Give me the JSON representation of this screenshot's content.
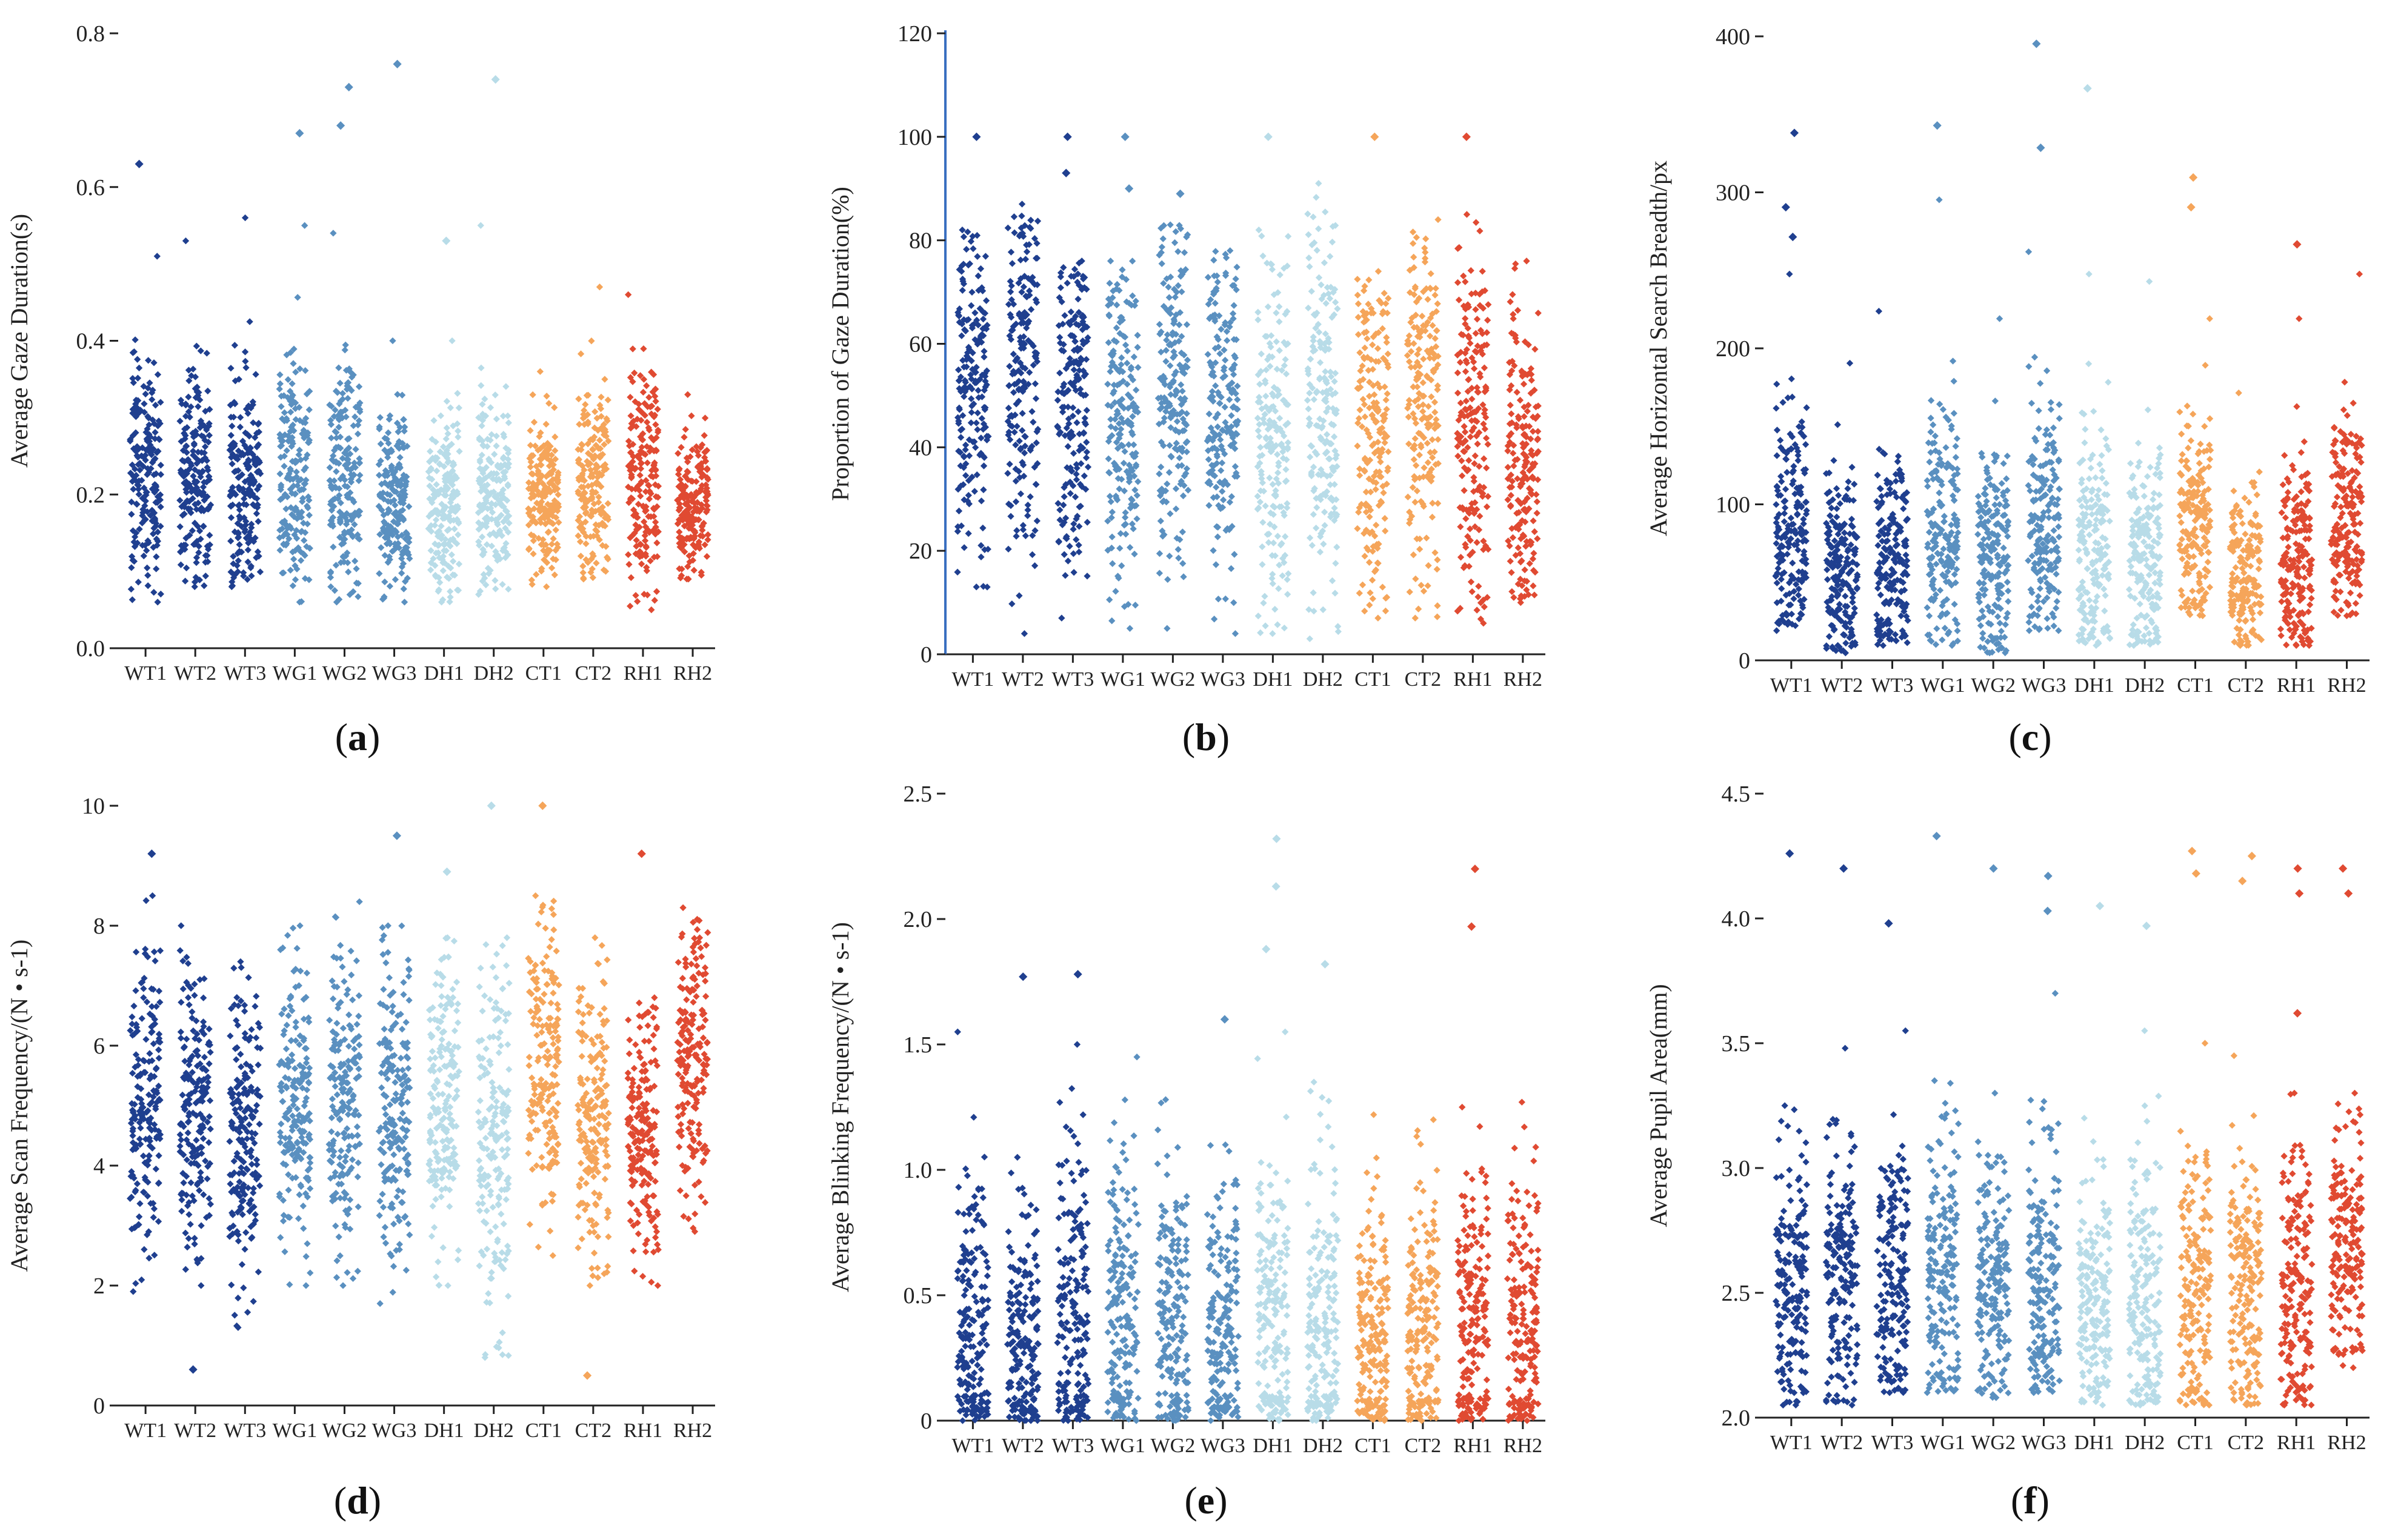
{
  "categories": [
    "WT1",
    "WT2",
    "WT3",
    "WG1",
    "WG2",
    "WG3",
    "DH1",
    "DH2",
    "CT1",
    "CT2",
    "RH1",
    "RH2"
  ],
  "colors": {
    "WT1": "#1f3f8f",
    "WT2": "#1f3f8f",
    "WT3": "#1f3f8f",
    "WG1": "#5a90c0",
    "WG2": "#5a90c0",
    "WG3": "#5a90c0",
    "DH1": "#b8dce8",
    "DH2": "#b8dce8",
    "CT1": "#f5a55a",
    "CT2": "#f5a55a",
    "RH1": "#e04a32",
    "RH2": "#e04a32"
  },
  "chart_data": [
    {
      "type": "scatter",
      "label": "a",
      "ylabel": "Average Gaze Duration(s)",
      "ylim": [
        0,
        0.8
      ],
      "yticks": [
        "0.0",
        "0.2",
        "0.4",
        "0.6",
        "0.8"
      ],
      "yaxis_line": false,
      "categories": [
        "WT1",
        "WT2",
        "WT3",
        "WG1",
        "WG2",
        "WG3",
        "DH1",
        "DH2",
        "CT1",
        "CT2",
        "RH1",
        "RH2"
      ],
      "summary": [
        {
          "min": 0.06,
          "max": 0.51,
          "center": 0.23,
          "spread": 0.075,
          "outliers": [
            0.63
          ]
        },
        {
          "min": 0.08,
          "max": 0.53,
          "center": 0.22,
          "spread": 0.065,
          "outliers": []
        },
        {
          "min": 0.08,
          "max": 0.56,
          "center": 0.21,
          "spread": 0.07,
          "outliers": []
        },
        {
          "min": 0.06,
          "max": 0.55,
          "center": 0.23,
          "spread": 0.08,
          "outliers": [
            0.67
          ]
        },
        {
          "min": 0.06,
          "max": 0.54,
          "center": 0.22,
          "spread": 0.075,
          "outliers": [
            0.68,
            0.73
          ]
        },
        {
          "min": 0.06,
          "max": 0.4,
          "center": 0.2,
          "spread": 0.06,
          "outliers": [
            0.76
          ]
        },
        {
          "min": 0.06,
          "max": 0.4,
          "center": 0.18,
          "spread": 0.06,
          "outliers": [
            0.53
          ]
        },
        {
          "min": 0.07,
          "max": 0.55,
          "center": 0.2,
          "spread": 0.065,
          "outliers": [
            0.74
          ]
        },
        {
          "min": 0.08,
          "max": 0.36,
          "center": 0.19,
          "spread": 0.05,
          "outliers": []
        },
        {
          "min": 0.09,
          "max": 0.47,
          "center": 0.21,
          "spread": 0.06,
          "outliers": []
        },
        {
          "min": 0.05,
          "max": 0.46,
          "center": 0.21,
          "spread": 0.075,
          "outliers": []
        },
        {
          "min": 0.09,
          "max": 0.33,
          "center": 0.18,
          "spread": 0.045,
          "outliers": []
        }
      ]
    },
    {
      "type": "scatter",
      "label": "b",
      "ylabel": "Proportion of Gaze Duration(%)",
      "ylim": [
        0,
        120
      ],
      "yticks": [
        "0",
        "20",
        "40",
        "60",
        "80",
        "100",
        "120"
      ],
      "yaxis_line": true,
      "categories": [
        "WT1",
        "WT2",
        "WT3",
        "WG1",
        "WG2",
        "WG3",
        "DH1",
        "DH2",
        "CT1",
        "CT2",
        "RH1",
        "RH2"
      ],
      "summary": [
        {
          "min": 13,
          "max": 82,
          "center": 50,
          "spread": 16,
          "outliers": [
            100
          ]
        },
        {
          "min": 4,
          "max": 87,
          "center": 55,
          "spread": 18,
          "outliers": []
        },
        {
          "min": 7,
          "max": 76,
          "center": 48,
          "spread": 17,
          "outliers": [
            100,
            93
          ]
        },
        {
          "min": 5,
          "max": 76,
          "center": 45,
          "spread": 17,
          "outliers": [
            100,
            90
          ]
        },
        {
          "min": 5,
          "max": 83,
          "center": 50,
          "spread": 17,
          "outliers": [
            89
          ]
        },
        {
          "min": 4,
          "max": 78,
          "center": 48,
          "spread": 16,
          "outliers": []
        },
        {
          "min": 4,
          "max": 82,
          "center": 42,
          "spread": 18,
          "outliers": [
            100
          ]
        },
        {
          "min": 3,
          "max": 91,
          "center": 48,
          "spread": 19,
          "outliers": []
        },
        {
          "min": 7,
          "max": 74,
          "center": 42,
          "spread": 17,
          "outliers": [
            100
          ]
        },
        {
          "min": 7,
          "max": 84,
          "center": 50,
          "spread": 17,
          "outliers": []
        },
        {
          "min": 6,
          "max": 85,
          "center": 45,
          "spread": 18,
          "outliers": [
            100
          ]
        },
        {
          "min": 10,
          "max": 76,
          "center": 38,
          "spread": 15,
          "outliers": []
        }
      ]
    },
    {
      "type": "scatter",
      "label": "c",
      "ylabel": "Average Horizontal Search Breadth/px",
      "ylim": [
        0,
        420
      ],
      "yticks": [
        "0",
        "100",
        "200",
        "300",
        "400"
      ],
      "yaxis_line": false,
      "categories": [
        "WT1",
        "WT2",
        "WT3",
        "WG1",
        "WG2",
        "WG3",
        "DH1",
        "DH2",
        "CT1",
        "CT2",
        "RH1",
        "RH2"
      ],
      "summary": [
        {
          "min": 20,
          "max": 260,
          "center": 85,
          "spread": 40,
          "outliers": [
            355,
            305,
            285
          ]
        },
        {
          "min": 5,
          "max": 200,
          "center": 60,
          "spread": 32,
          "outliers": []
        },
        {
          "min": 10,
          "max": 235,
          "center": 65,
          "spread": 35,
          "outliers": []
        },
        {
          "min": 10,
          "max": 310,
          "center": 85,
          "spread": 45,
          "outliers": [
            360
          ]
        },
        {
          "min": 5,
          "max": 230,
          "center": 70,
          "spread": 38,
          "outliers": []
        },
        {
          "min": 20,
          "max": 275,
          "center": 90,
          "spread": 42,
          "outliers": [
            415,
            345
          ]
        },
        {
          "min": 10,
          "max": 260,
          "center": 75,
          "spread": 40,
          "outliers": [
            385
          ]
        },
        {
          "min": 10,
          "max": 255,
          "center": 70,
          "spread": 38,
          "outliers": []
        },
        {
          "min": 30,
          "max": 230,
          "center": 90,
          "spread": 35,
          "outliers": [
            325,
            305
          ]
        },
        {
          "min": 10,
          "max": 180,
          "center": 60,
          "spread": 30,
          "outliers": []
        },
        {
          "min": 10,
          "max": 230,
          "center": 70,
          "spread": 36,
          "outliers": [
            280
          ]
        },
        {
          "min": 30,
          "max": 260,
          "center": 100,
          "spread": 38,
          "outliers": []
        }
      ]
    },
    {
      "type": "scatter",
      "label": "d",
      "ylabel": "Average Scan Frequency/(N • s-1)",
      "ylim": [
        0,
        10
      ],
      "yticks": [
        "0",
        "2",
        "4",
        "6",
        "8",
        "10"
      ],
      "yaxis_line": false,
      "categories": [
        "WT1",
        "WT2",
        "WT3",
        "WG1",
        "WG2",
        "WG3",
        "DH1",
        "DH2",
        "CT1",
        "CT2",
        "RH1",
        "RH2"
      ],
      "summary": [
        {
          "min": 1.9,
          "max": 8.5,
          "center": 5,
          "spread": 1.3,
          "outliers": [
            9.2
          ]
        },
        {
          "min": 2,
          "max": 8,
          "center": 5,
          "spread": 1.2,
          "outliers": [
            0.6
          ]
        },
        {
          "min": 1.3,
          "max": 7.4,
          "center": 4.6,
          "spread": 1.3,
          "outliers": []
        },
        {
          "min": 2,
          "max": 8,
          "center": 5,
          "spread": 1.2,
          "outliers": []
        },
        {
          "min": 2,
          "max": 8.4,
          "center": 5,
          "spread": 1.3,
          "outliers": []
        },
        {
          "min": 1.7,
          "max": 8,
          "center": 5,
          "spread": 1.3,
          "outliers": [
            9.5
          ]
        },
        {
          "min": 2,
          "max": 7.8,
          "center": 5,
          "spread": 1.3,
          "outliers": [
            8.9
          ]
        },
        {
          "min": 0.8,
          "max": 7.8,
          "center": 4.5,
          "spread": 1.5,
          "outliers": [
            10
          ]
        },
        {
          "min": 2.5,
          "max": 8.5,
          "center": 5.6,
          "spread": 1.3,
          "outliers": [
            10
          ]
        },
        {
          "min": 2,
          "max": 7.8,
          "center": 4.8,
          "spread": 1.2,
          "outliers": [
            0.5
          ]
        },
        {
          "min": 2,
          "max": 6.8,
          "center": 4.6,
          "spread": 1.1,
          "outliers": [
            9.2
          ]
        },
        {
          "min": 2.9,
          "max": 8.3,
          "center": 5.8,
          "spread": 1.2,
          "outliers": []
        }
      ]
    },
    {
      "type": "scatter",
      "label": "e",
      "ylabel": "Average Blinking Frequency/(N • s-1)",
      "ylim": [
        0,
        2.5
      ],
      "yticks": [
        "0",
        "0.5",
        "1.0",
        "1.5",
        "2.0",
        "2.5"
      ],
      "yaxis_line": false,
      "categories": [
        "WT1",
        "WT2",
        "WT3",
        "WG1",
        "WG2",
        "WG3",
        "DH1",
        "DH2",
        "CT1",
        "CT2",
        "RH1",
        "RH2"
      ],
      "summary": [
        {
          "min": 0,
          "max": 1.55,
          "center": 0.35,
          "spread": 0.35,
          "outliers": []
        },
        {
          "min": 0,
          "max": 1.05,
          "center": 0.3,
          "spread": 0.3,
          "outliers": [
            1.77
          ]
        },
        {
          "min": 0,
          "max": 1.5,
          "center": 0.4,
          "spread": 0.35,
          "outliers": [
            1.78
          ]
        },
        {
          "min": 0,
          "max": 1.45,
          "center": 0.4,
          "spread": 0.35,
          "outliers": []
        },
        {
          "min": 0,
          "max": 1.28,
          "center": 0.4,
          "spread": 0.3,
          "outliers": []
        },
        {
          "min": 0,
          "max": 1.1,
          "center": 0.35,
          "spread": 0.3,
          "outliers": [
            1.6
          ]
        },
        {
          "min": 0,
          "max": 1.55,
          "center": 0.4,
          "spread": 0.35,
          "outliers": [
            2.32,
            2.13,
            1.88
          ]
        },
        {
          "min": 0,
          "max": 1.35,
          "center": 0.35,
          "spread": 0.35,
          "outliers": [
            1.82
          ]
        },
        {
          "min": 0,
          "max": 1.22,
          "center": 0.35,
          "spread": 0.3,
          "outliers": []
        },
        {
          "min": 0,
          "max": 1.2,
          "center": 0.35,
          "spread": 0.3,
          "outliers": []
        },
        {
          "min": 0,
          "max": 1.25,
          "center": 0.4,
          "spread": 0.3,
          "outliers": [
            2.2,
            1.97
          ]
        },
        {
          "min": 0,
          "max": 1.27,
          "center": 0.35,
          "spread": 0.3,
          "outliers": []
        }
      ]
    },
    {
      "type": "scatter",
      "label": "f",
      "ylabel": "Average Pupil Area(mm)",
      "ylim": [
        2.0,
        4.5
      ],
      "yticks": [
        "2.0",
        "2.5",
        "3.0",
        "3.5",
        "4.0",
        "4.5"
      ],
      "yaxis_line": false,
      "categories": [
        "WT1",
        "WT2",
        "WT3",
        "WG1",
        "WG2",
        "WG3",
        "DH1",
        "DH2",
        "CT1",
        "CT2",
        "RH1",
        "RH2"
      ],
      "summary": [
        {
          "min": 2.05,
          "max": 3.25,
          "center": 2.5,
          "spread": 0.28,
          "outliers": [
            4.26
          ]
        },
        {
          "min": 2.05,
          "max": 3.48,
          "center": 2.55,
          "spread": 0.3,
          "outliers": [
            4.2
          ]
        },
        {
          "min": 2.1,
          "max": 3.55,
          "center": 2.55,
          "spread": 0.3,
          "outliers": [
            3.98
          ]
        },
        {
          "min": 2.1,
          "max": 3.35,
          "center": 2.6,
          "spread": 0.3,
          "outliers": [
            4.33
          ]
        },
        {
          "min": 2.08,
          "max": 3.3,
          "center": 2.55,
          "spread": 0.28,
          "outliers": [
            4.2
          ]
        },
        {
          "min": 2.1,
          "max": 3.7,
          "center": 2.55,
          "spread": 0.3,
          "outliers": [
            4.17,
            4.03
          ]
        },
        {
          "min": 2.05,
          "max": 3.2,
          "center": 2.45,
          "spread": 0.28,
          "outliers": [
            4.05
          ]
        },
        {
          "min": 2.05,
          "max": 3.55,
          "center": 2.45,
          "spread": 0.3,
          "outliers": [
            3.97
          ]
        },
        {
          "min": 2.05,
          "max": 3.5,
          "center": 2.5,
          "spread": 0.3,
          "outliers": [
            4.27,
            4.18
          ]
        },
        {
          "min": 2.05,
          "max": 3.45,
          "center": 2.5,
          "spread": 0.3,
          "outliers": [
            4.25,
            4.15
          ]
        },
        {
          "min": 2.05,
          "max": 3.3,
          "center": 2.5,
          "spread": 0.28,
          "outliers": [
            4.2,
            4.1,
            3.62
          ]
        },
        {
          "min": 2.2,
          "max": 3.3,
          "center": 2.7,
          "spread": 0.25,
          "outliers": [
            4.2,
            4.1
          ]
        }
      ]
    }
  ]
}
